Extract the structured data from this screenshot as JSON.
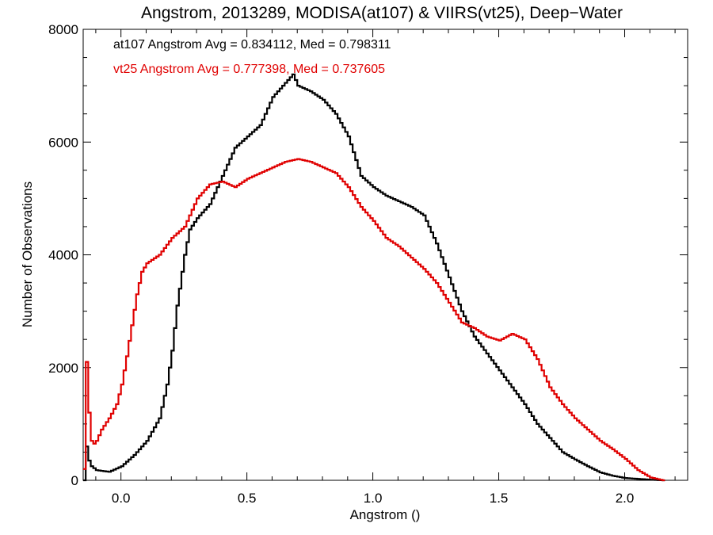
{
  "chart_data": {
    "type": "line",
    "title": "Angstrom, 2013289, MODISA(at107) & VIIRS(vt25), Deep−Water",
    "xlabel": "Angstrom ()",
    "ylabel": "Number of Observations",
    "xlim": [
      -0.15,
      2.25
    ],
    "ylim": [
      0,
      8000
    ],
    "x_ticks": [
      "0.0",
      "0.5",
      "1.0",
      "1.5",
      "2.0"
    ],
    "y_ticks": [
      "0",
      "2000",
      "4000",
      "6000",
      "8000"
    ],
    "grid": false,
    "step": true,
    "annotations": [
      {
        "text": "at107 Angstrom Avg = 0.834112, Med = 0.798311",
        "color": "#000000"
      },
      {
        "text": "vt25 Angstrom Avg = 0.777398, Med = 0.737605",
        "color": "#e00000"
      }
    ],
    "series": [
      {
        "color": "#000000",
        "x": [
          -0.15,
          -0.14,
          -0.13,
          -0.12,
          -0.1,
          -0.05,
          0.0,
          0.05,
          0.1,
          0.15,
          0.18,
          0.2,
          0.22,
          0.25,
          0.27,
          0.3,
          0.35,
          0.4,
          0.45,
          0.5,
          0.55,
          0.6,
          0.65,
          0.68,
          0.7,
          0.75,
          0.8,
          0.85,
          0.9,
          0.95,
          1.0,
          1.05,
          1.1,
          1.15,
          1.2,
          1.25,
          1.3,
          1.35,
          1.4,
          1.45,
          1.5,
          1.55,
          1.6,
          1.65,
          1.7,
          1.75,
          1.8,
          1.85,
          1.9,
          1.95,
          2.0,
          2.05,
          2.1,
          2.15
        ],
        "y": [
          0,
          600,
          350,
          250,
          180,
          150,
          250,
          450,
          700,
          1100,
          1700,
          2300,
          3100,
          4000,
          4450,
          4650,
          4900,
          5400,
          5900,
          6100,
          6300,
          6800,
          7050,
          7200,
          7000,
          6900,
          6750,
          6500,
          6100,
          5400,
          5200,
          5050,
          4950,
          4850,
          4700,
          4200,
          3600,
          3000,
          2550,
          2250,
          1950,
          1650,
          1350,
          1000,
          750,
          500,
          370,
          250,
          140,
          80,
          40,
          25,
          10,
          0
        ]
      },
      {
        "color": "#e00000",
        "x": [
          -0.15,
          -0.14,
          -0.13,
          -0.12,
          -0.11,
          -0.1,
          -0.08,
          -0.05,
          -0.02,
          0.0,
          0.02,
          0.04,
          0.06,
          0.08,
          0.1,
          0.15,
          0.2,
          0.25,
          0.3,
          0.35,
          0.4,
          0.45,
          0.5,
          0.55,
          0.6,
          0.65,
          0.7,
          0.75,
          0.8,
          0.85,
          0.9,
          0.95,
          1.0,
          1.05,
          1.1,
          1.15,
          1.2,
          1.25,
          1.3,
          1.35,
          1.4,
          1.45,
          1.5,
          1.55,
          1.6,
          1.65,
          1.7,
          1.75,
          1.8,
          1.85,
          1.9,
          1.95,
          2.0,
          2.05,
          2.1,
          2.15
        ],
        "y": [
          200,
          2100,
          1200,
          700,
          650,
          700,
          900,
          1100,
          1350,
          1700,
          2200,
          2750,
          3300,
          3700,
          3850,
          4000,
          4300,
          4500,
          5000,
          5250,
          5300,
          5200,
          5350,
          5450,
          5550,
          5650,
          5700,
          5650,
          5550,
          5450,
          5200,
          4850,
          4600,
          4300,
          4150,
          3950,
          3750,
          3500,
          3150,
          2800,
          2700,
          2550,
          2480,
          2600,
          2500,
          2150,
          1650,
          1350,
          1100,
          900,
          700,
          550,
          380,
          180,
          50,
          0
        ]
      }
    ]
  }
}
